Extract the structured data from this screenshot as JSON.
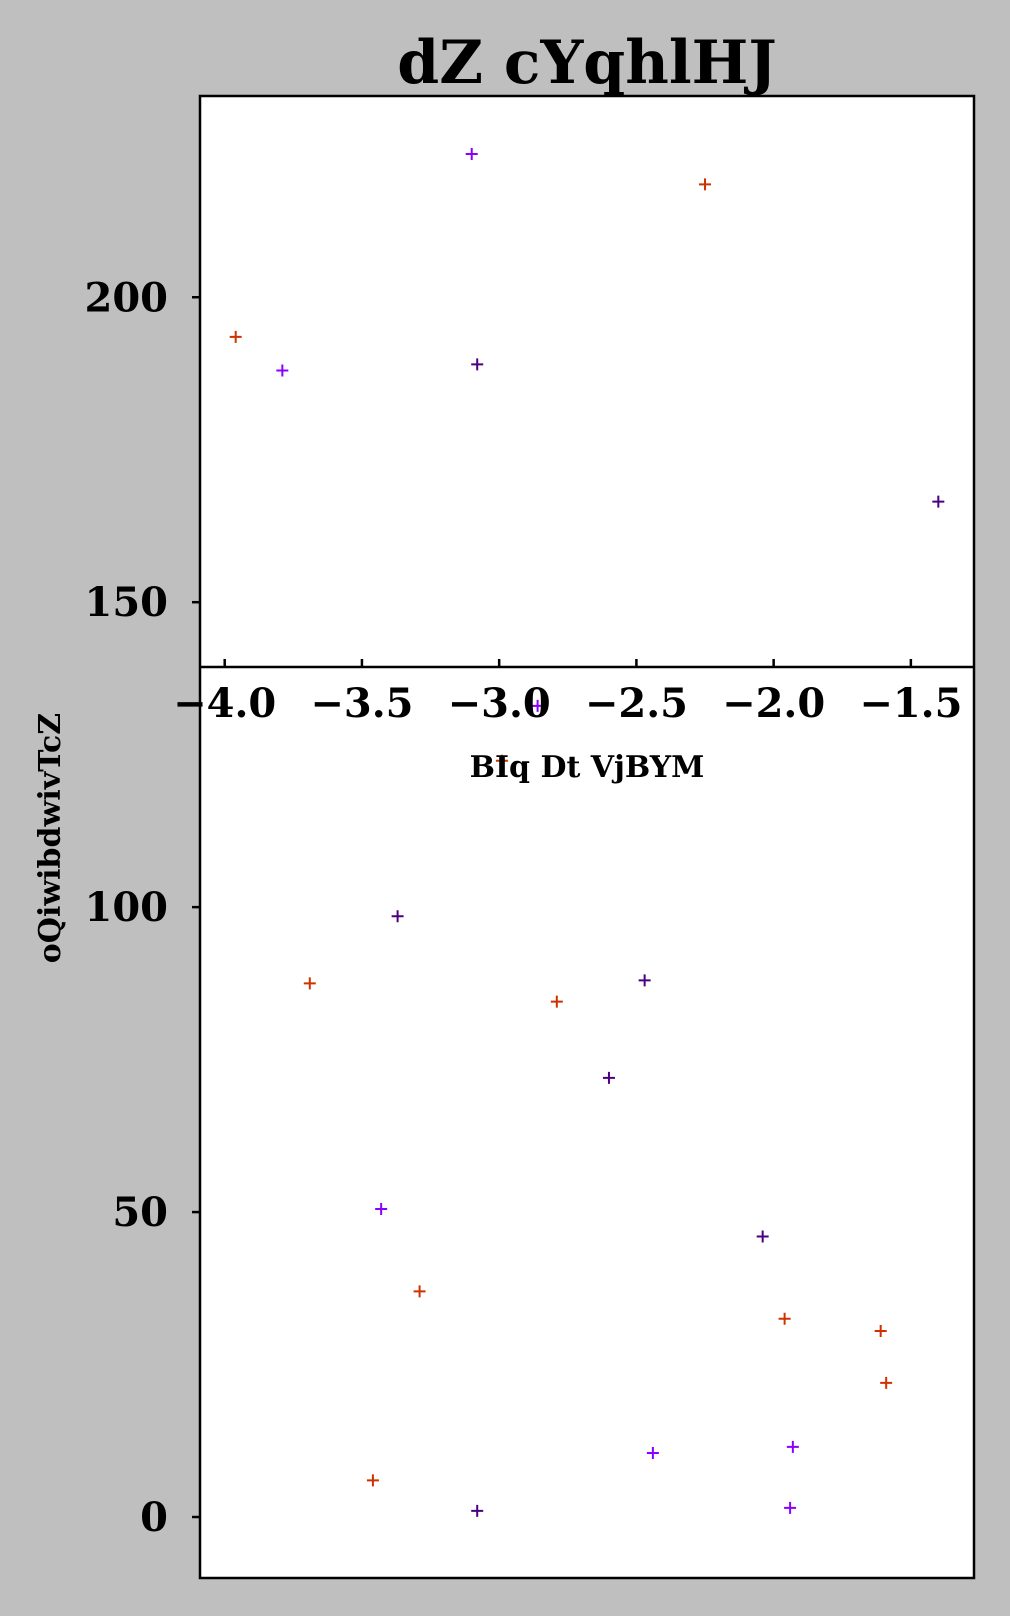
{
  "chart_data": {
    "type": "scatter",
    "title": "dZ cYqhlHJ",
    "xlabel": "BIq Dt VjBYM",
    "ylabel": "oQiwibdwivTcZ",
    "xlim": [
      -4.09,
      -1.27
    ],
    "ylim": [
      -10,
      233
    ],
    "xticks": [
      -4.0,
      -3.5,
      -3.0,
      -2.5,
      -2.0,
      -1.5
    ],
    "xtick_labels": [
      "−4.0",
      "−3.5",
      "−3.0",
      "−2.5",
      "−2.0",
      "−1.5"
    ],
    "yticks": [
      0,
      50,
      100,
      150,
      200
    ],
    "ytick_labels": [
      "0",
      "50",
      "100",
      "150",
      "200"
    ],
    "grid": false,
    "marker": "+",
    "series": [
      {
        "color": "#cc3300",
        "x": [
          -3.96,
          -2.25,
          -3.69,
          -2.79,
          -3.29,
          -1.96,
          -1.61,
          -1.59,
          -3.46,
          -2.99
        ],
        "y": [
          193.5,
          218.5,
          87.5,
          84.5,
          37,
          32.5,
          30.5,
          22,
          6,
          124
        ]
      },
      {
        "color": "#8a00ff",
        "x": [
          -3.1,
          -3.79,
          -3.43,
          -2.44,
          -1.93,
          -1.94,
          -2.86
        ],
        "y": [
          223.5,
          188,
          50.5,
          10.5,
          11.5,
          1.5,
          133
        ]
      },
      {
        "color": "#4b0082",
        "x": [
          -3.08,
          -1.4,
          -3.37,
          -2.47,
          -2.6,
          -2.04,
          -3.08
        ],
        "y": [
          189,
          166.5,
          98.5,
          88,
          72,
          46,
          1
        ]
      }
    ]
  }
}
